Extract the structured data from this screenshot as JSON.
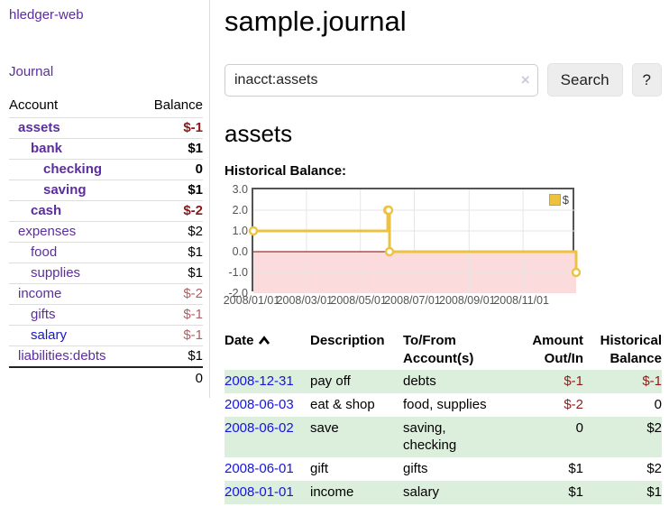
{
  "colors": {
    "link_purple": "#5c2d9e",
    "link_blue": "#1515dd",
    "negative_strong": "#8b1717",
    "negative_soft": "#b06066",
    "negative_table": "#8f1d1d",
    "row_stripe": "#dceedc",
    "series": "#edc240",
    "chart_border": "#545454",
    "zero_line": "#8b0000",
    "negative_region": "#fbdbdb"
  },
  "sidebar": {
    "app_title": "hledger-web",
    "journal_link": "Journal",
    "accounts_table": {
      "headers": {
        "account": "Account",
        "balance": "Balance"
      },
      "rows": [
        {
          "name": "assets",
          "indent": 1,
          "bold": true,
          "balance": "$-1",
          "negative": "strong",
          "link": "purple"
        },
        {
          "name": "bank",
          "indent": 2,
          "bold": true,
          "balance": "$1",
          "negative": null,
          "link": "purple"
        },
        {
          "name": "checking",
          "indent": 3,
          "bold": true,
          "balance": "0",
          "negative": null,
          "link": "purple"
        },
        {
          "name": "saving",
          "indent": 3,
          "bold": true,
          "balance": "$1",
          "negative": null,
          "link": "purple"
        },
        {
          "name": "cash",
          "indent": 2,
          "bold": true,
          "balance": "$-2",
          "negative": "strong",
          "link": "purple"
        },
        {
          "name": "expenses",
          "indent": 1,
          "bold": false,
          "balance": "$2",
          "negative": null,
          "link": "purple"
        },
        {
          "name": "food",
          "indent": 2,
          "bold": false,
          "balance": "$1",
          "negative": null,
          "link": "purple"
        },
        {
          "name": "supplies",
          "indent": 2,
          "bold": false,
          "balance": "$1",
          "negative": null,
          "link": "purple"
        },
        {
          "name": "income",
          "indent": 1,
          "bold": false,
          "balance": "$-2",
          "negative": "soft",
          "link": "purple"
        },
        {
          "name": "gifts",
          "indent": 2,
          "bold": false,
          "balance": "$-1",
          "negative": "soft",
          "link": "purple"
        },
        {
          "name": "salary",
          "indent": 2,
          "bold": false,
          "balance": "$-1",
          "negative": "soft",
          "link": "blue"
        },
        {
          "name": "liabilities:debts",
          "indent": 1,
          "bold": false,
          "balance": "$1",
          "negative": null,
          "link": "purple"
        }
      ],
      "total": "0"
    }
  },
  "main": {
    "title": "sample.journal",
    "search": {
      "query": "inacct:assets",
      "clear_icon": "×",
      "button_label": "Search",
      "help_label": "?"
    },
    "account_heading": "assets",
    "chart_label": "Historical Balance:",
    "register": {
      "headers": {
        "date": "Date",
        "description": "Description",
        "accounts": "To/From\nAccount(s)",
        "amount": "Amount\nOut/In",
        "balance": "Historical\nBalance"
      },
      "rows": [
        {
          "date": "2008-12-31",
          "description": "pay off",
          "accounts": "debts",
          "amount": "$-1",
          "amount_neg": true,
          "balance": "$-1",
          "balance_neg": true
        },
        {
          "date": "2008-06-03",
          "description": "eat & shop",
          "accounts": "food, supplies",
          "amount": "$-2",
          "amount_neg": true,
          "balance": "0",
          "balance_neg": false
        },
        {
          "date": "2008-06-02",
          "description": "save",
          "accounts": "saving,\nchecking",
          "amount": "0",
          "amount_neg": false,
          "balance": "$2",
          "balance_neg": false
        },
        {
          "date": "2008-06-01",
          "description": "gift",
          "accounts": "gifts",
          "amount": "$1",
          "amount_neg": false,
          "balance": "$2",
          "balance_neg": false
        },
        {
          "date": "2008-01-01",
          "description": "income",
          "accounts": "salary",
          "amount": "$1",
          "amount_neg": false,
          "balance": "$1",
          "balance_neg": false
        }
      ]
    }
  },
  "chart_data": {
    "type": "line",
    "title": "Historical Balance",
    "steps": true,
    "series": [
      {
        "name": "$",
        "color": "#edc240",
        "points": [
          [
            "2008-01-01",
            1
          ],
          [
            "2008-06-01",
            2
          ],
          [
            "2008-06-02",
            2
          ],
          [
            "2008-06-03",
            0
          ],
          [
            "2008-12-31",
            -1
          ]
        ]
      }
    ],
    "x_range": [
      "2008-01-01",
      "2008-12-31"
    ],
    "x_tick_labels": [
      "2008/01/01",
      "2008/03/01",
      "2008/05/01",
      "2008/07/01",
      "2008/09/01",
      "2008/11/01"
    ],
    "y_tick_labels": [
      "3.0",
      "2.0",
      "1.0",
      "0.0",
      "-1.0",
      "-2.0"
    ],
    "ylim": [
      -2,
      3
    ],
    "grid": true,
    "legend_position": "top-right",
    "zero_line": true,
    "negative_region_shaded": true
  }
}
